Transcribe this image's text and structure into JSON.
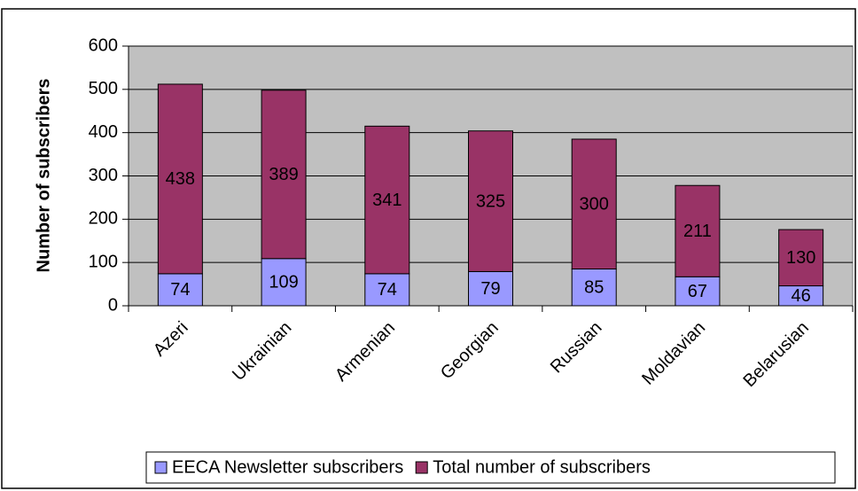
{
  "chart_data": {
    "type": "bar",
    "stacked": true,
    "y_label": "Number of subscribers",
    "categories": [
      "Azeri",
      "Ukrainian",
      "Armenian",
      "Georgian",
      "Russian",
      "Moldavian",
      "Belarusian"
    ],
    "series": [
      {
        "name": "EECA Newsletter subscribers",
        "color": "#9999ff",
        "values": [
          74,
          109,
          74,
          79,
          85,
          67,
          46
        ]
      },
      {
        "name": "Total number of subscribers",
        "color": "#993366",
        "values": [
          438,
          389,
          341,
          325,
          300,
          211,
          130
        ]
      }
    ],
    "ylim": [
      0,
      600
    ],
    "yticks": [
      0,
      100,
      200,
      300,
      400,
      500,
      600
    ],
    "grid": true,
    "plot_background": "#c0c0c0",
    "legend": "bottom"
  }
}
